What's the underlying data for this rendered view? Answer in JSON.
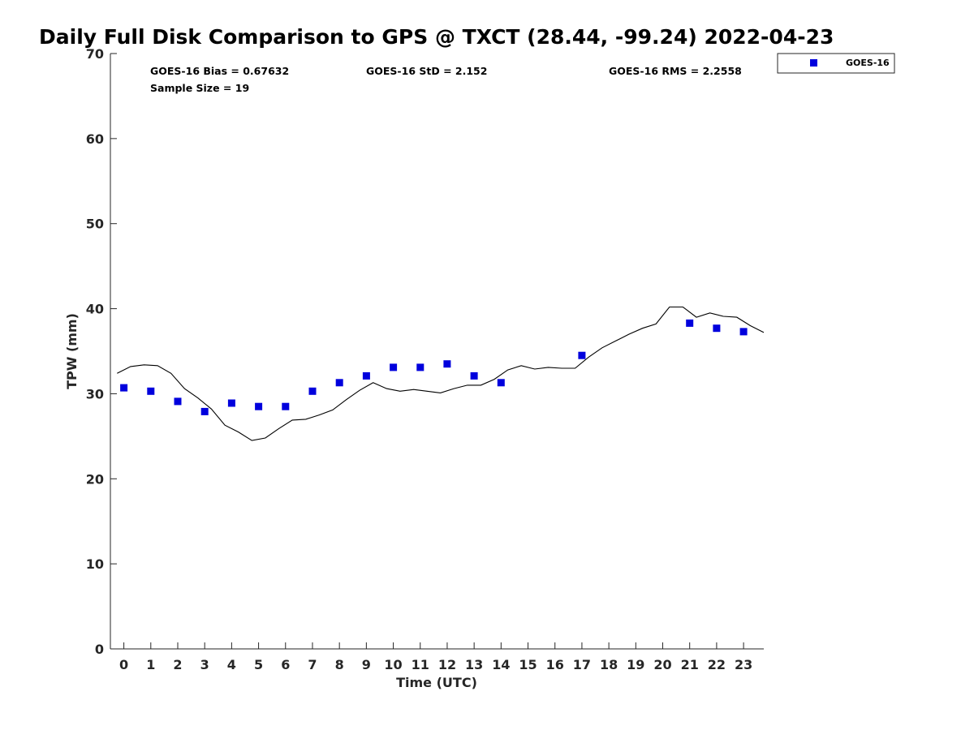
{
  "chart_data": {
    "type": "scatter",
    "title": "Daily Full Disk Comparison to GPS @ TXCT (28.44, -99.24) 2022-04-23",
    "xlabel": "Time (UTC)",
    "ylabel": "TPW (mm)",
    "xlim": [
      -0.5,
      23.75
    ],
    "ylim": [
      0,
      70
    ],
    "x_ticks": [
      "0",
      "1",
      "2",
      "3",
      "4",
      "5",
      "6",
      "7",
      "8",
      "9",
      "10",
      "11",
      "12",
      "13",
      "14",
      "15",
      "16",
      "17",
      "18",
      "19",
      "20",
      "21",
      "22",
      "23"
    ],
    "y_ticks": [
      "0",
      "10",
      "20",
      "30",
      "40",
      "50",
      "60",
      "70"
    ],
    "grid": false,
    "legend": {
      "position": "top-right",
      "entries": [
        "GOES-16"
      ]
    },
    "stats": {
      "bias": "GOES-16 Bias = 0.67632",
      "std": "GOES-16 StD = 2.152",
      "rms": "GOES-16 RMS = 2.2558",
      "sample": "Sample Size = 19"
    },
    "series": [
      {
        "name": "GOES-16",
        "kind": "markers",
        "color": "#0000dd",
        "x": [
          0,
          1,
          2,
          3,
          4,
          5,
          6,
          7,
          8,
          9,
          10,
          11,
          12,
          13,
          14,
          17,
          21,
          22,
          23
        ],
        "y": [
          30.7,
          30.3,
          29.1,
          27.9,
          28.9,
          28.5,
          28.5,
          30.3,
          31.3,
          32.1,
          33.1,
          33.1,
          33.5,
          32.1,
          31.3,
          34.5,
          38.3,
          37.7,
          37.3
        ]
      },
      {
        "kind": "line",
        "color": "#000000",
        "x": [
          -0.25,
          0.25,
          0.75,
          1.25,
          1.75,
          2.25,
          2.75,
          3.25,
          3.75,
          4.25,
          4.75,
          5.25,
          5.75,
          6.25,
          6.75,
          7.25,
          7.75,
          8.25,
          8.75,
          9.25,
          9.75,
          10.25,
          10.75,
          11.25,
          11.75,
          12.25,
          12.75,
          13.25,
          13.75,
          14.25,
          14.75,
          15.25,
          15.75,
          16.25,
          16.75,
          17.25,
          17.75,
          18.25,
          18.75,
          19.25,
          19.75,
          20.25,
          20.75,
          21.25,
          21.75,
          22.25,
          22.75,
          23.25,
          23.75
        ],
        "y": [
          32.4,
          33.2,
          33.4,
          33.3,
          32.4,
          30.6,
          29.5,
          28.2,
          26.3,
          25.5,
          24.5,
          24.8,
          25.9,
          26.9,
          27.0,
          27.5,
          28.1,
          29.3,
          30.4,
          31.3,
          30.6,
          30.3,
          30.5,
          30.3,
          30.1,
          30.6,
          31.0,
          31.0,
          31.7,
          32.8,
          33.3,
          32.9,
          33.1,
          33.0,
          33.0,
          34.3,
          35.4,
          36.2,
          37.0,
          37.7,
          38.2,
          40.2,
          40.2,
          39.0,
          39.5,
          39.1,
          39.0,
          38.0,
          37.2
        ]
      }
    ]
  }
}
